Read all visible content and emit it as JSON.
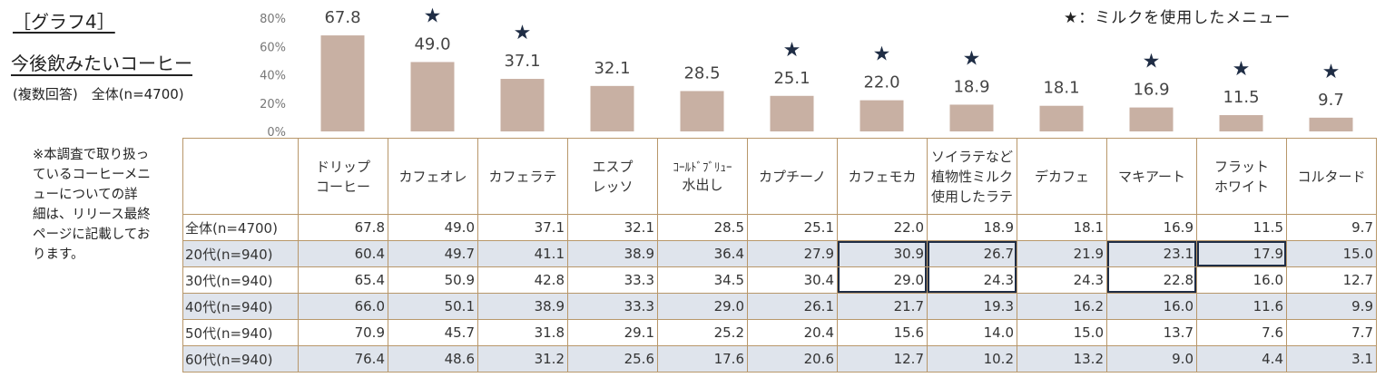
{
  "graph_label": "［グラフ4］",
  "title": "今後飲みたいコーヒー",
  "subtitle": "(複数回答)　全体(n=4700)",
  "side_note": "※本調査で取り扱っているコーヒーメニューについての詳細は、リリース最終ページに記載しております。",
  "legend": "★：ミルクを使用したメニュー",
  "colors": {
    "bar": "#c8b0a3",
    "star": "#1f2d45",
    "table_border": "#b8976a",
    "row_shade": "#dfe4ec"
  },
  "chart_data": {
    "type": "bar",
    "categories": [
      "ドリップコーヒー",
      "カフェオレ",
      "カフェラテ",
      "エスプレッソ",
      "コールドブリュー水出し",
      "カプチーノ",
      "カフェモカ",
      "ソイラテなど植物性ミルク使用したラテ",
      "デカフェ",
      "マキアート",
      "フラットホワイト",
      "コルタード"
    ],
    "values": [
      67.8,
      49.0,
      37.1,
      32.1,
      28.5,
      25.1,
      22.0,
      18.9,
      18.1,
      16.9,
      11.5,
      9.7
    ],
    "milk_star": [
      false,
      true,
      true,
      false,
      false,
      true,
      true,
      true,
      false,
      true,
      true,
      true
    ],
    "y_ticks": [
      "80%",
      "60%",
      "40%",
      "20%",
      "0%"
    ],
    "ylim": [
      0,
      80
    ]
  },
  "table": {
    "headers": [
      [
        "ドリップ",
        "コーヒー"
      ],
      [
        "カフェオレ"
      ],
      [
        "カフェラテ"
      ],
      [
        "エスプ",
        "レッソ"
      ],
      [
        "ｺｰﾙﾄﾞﾌﾞﾘｭｰ",
        "水出し"
      ],
      [
        "カプチーノ"
      ],
      [
        "カフェモカ"
      ],
      [
        "ソイラテなど",
        "植物性ミルク",
        "使用したラテ"
      ],
      [
        "デカフェ"
      ],
      [
        "マキアート"
      ],
      [
        "フラット",
        "ホワイト"
      ],
      [
        "コルタード"
      ]
    ],
    "rows": [
      {
        "label": "全体(n=4700)",
        "values": [
          "67.8",
          "49.0",
          "37.1",
          "32.1",
          "28.5",
          "25.1",
          "22.0",
          "18.9",
          "18.1",
          "16.9",
          "11.5",
          "9.7"
        ]
      },
      {
        "label": "20代(n=940)",
        "values": [
          "60.4",
          "49.7",
          "41.1",
          "38.9",
          "36.4",
          "27.9",
          "30.9",
          "26.7",
          "21.9",
          "23.1",
          "17.9",
          "15.0"
        ]
      },
      {
        "label": "30代(n=940)",
        "values": [
          "65.4",
          "50.9",
          "42.8",
          "33.3",
          "34.5",
          "30.4",
          "29.0",
          "24.3",
          "24.3",
          "22.8",
          "16.0",
          "12.7"
        ]
      },
      {
        "label": "40代(n=940)",
        "values": [
          "66.0",
          "50.1",
          "38.9",
          "33.3",
          "29.0",
          "26.1",
          "21.7",
          "19.3",
          "16.2",
          "16.0",
          "11.6",
          "9.9"
        ]
      },
      {
        "label": "50代(n=940)",
        "values": [
          "70.9",
          "45.7",
          "31.8",
          "29.1",
          "25.2",
          "20.4",
          "15.6",
          "14.0",
          "15.0",
          "13.7",
          "7.6",
          "7.7"
        ]
      },
      {
        "label": "60代(n=940)",
        "values": [
          "76.4",
          "48.6",
          "31.2",
          "25.6",
          "17.6",
          "20.6",
          "12.7",
          "10.2",
          "13.2",
          "9.0",
          "4.4",
          "3.1"
        ]
      }
    ]
  }
}
